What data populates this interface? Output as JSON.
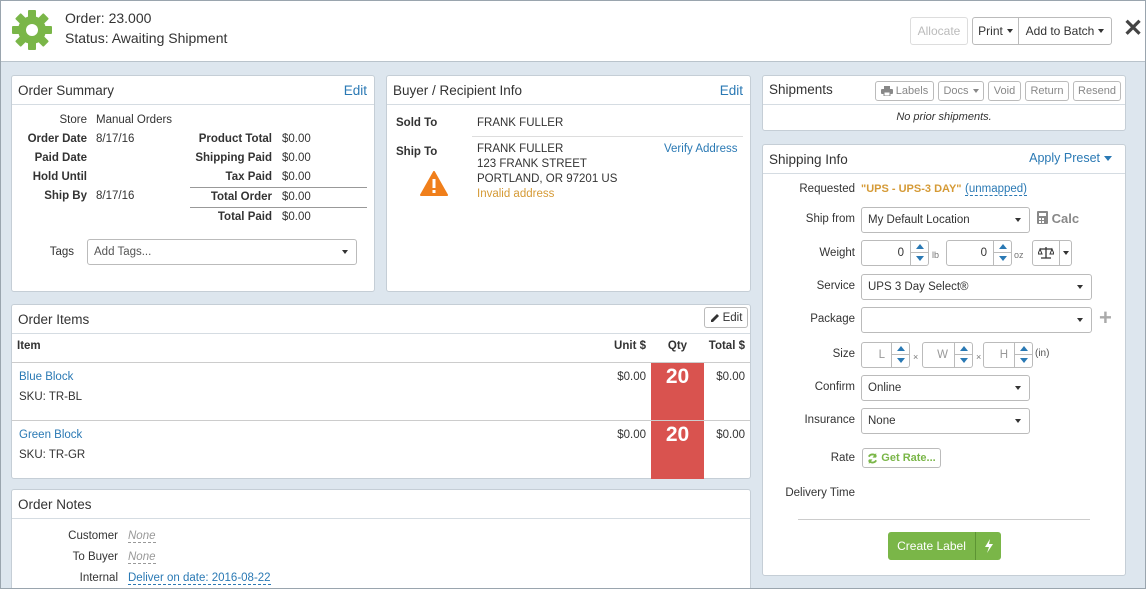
{
  "header": {
    "order_number": "Order: 23.000",
    "status": "Status: Awaiting Shipment",
    "allocate_label": "Allocate",
    "print_label": "Print",
    "add_to_batch_label": "Add to Batch",
    "close_glyph": "✕"
  },
  "order_summary": {
    "title": "Order Summary",
    "edit_label": "Edit",
    "store_label": "Store",
    "store_value": "Manual Orders",
    "order_date_label": "Order Date",
    "order_date_value": "8/17/16",
    "paid_date_label": "Paid Date",
    "hold_until_label": "Hold Until",
    "ship_by_label": "Ship By",
    "ship_by_value": "8/17/16",
    "product_total_label": "Product Total",
    "product_total_value": "$0.00",
    "shipping_paid_label": "Shipping Paid",
    "shipping_paid_value": "$0.00",
    "tax_paid_label": "Tax Paid",
    "tax_paid_value": "$0.00",
    "total_order_label": "Total Order",
    "total_order_value": "$0.00",
    "total_paid_label": "Total Paid",
    "total_paid_value": "$0.00",
    "tags_label": "Tags",
    "tags_placeholder": "Add Tags..."
  },
  "buyer": {
    "title": "Buyer / Recipient Info",
    "edit_label": "Edit",
    "sold_to_label": "Sold To",
    "sold_to_name": "FRANK FULLER",
    "ship_to_label": "Ship To",
    "ship_to_name": "FRANK FULLER",
    "ship_to_street": "123 FRANK STREET",
    "ship_to_city": "PORTLAND, OR 97201 US",
    "invalid_address": "Invalid address",
    "verify_address": "Verify Address",
    "warning_color": "#f07f1b"
  },
  "order_items": {
    "title": "Order Items",
    "edit_label": "Edit",
    "columns": {
      "item": "Item",
      "unit": "Unit $",
      "qty": "Qty",
      "total": "Total $"
    },
    "rows": [
      {
        "name": "Blue Block",
        "sku": "SKU: TR-BL",
        "unit": "$0.00",
        "qty": "20",
        "total": "$0.00"
      },
      {
        "name": "Green Block",
        "sku": "SKU: TR-GR",
        "unit": "$0.00",
        "qty": "20",
        "total": "$0.00"
      }
    ],
    "qty_color": "#d9534f"
  },
  "order_notes": {
    "title": "Order Notes",
    "customer_label": "Customer",
    "customer_value": "None",
    "to_buyer_label": "To Buyer",
    "to_buyer_value": "None",
    "internal_label": "Internal",
    "internal_value": "Deliver on date: 2016-08-22"
  },
  "shipments": {
    "title": "Shipments",
    "labels_btn": "Labels",
    "docs_btn": "Docs",
    "void_btn": "Void",
    "return_btn": "Return",
    "resend_btn": "Resend",
    "empty_text": "No prior shipments."
  },
  "shipping_info": {
    "title": "Shipping Info",
    "apply_preset": "Apply Preset",
    "requested_label": "Requested",
    "requested_value": "\"UPS - UPS-3 DAY\"",
    "unmapped": "(unmapped)",
    "ship_from_label": "Ship from",
    "ship_from_value": "My Default Location",
    "calc_label": "Calc",
    "weight_label": "Weight",
    "weight_lb": "0",
    "lb_unit": "lb",
    "weight_oz": "0",
    "oz_unit": "oz",
    "service_label": "Service",
    "service_value": "UPS 3 Day Select®",
    "package_label": "Package",
    "package_value": "",
    "size_label": "Size",
    "size_l": "L",
    "size_w": "W",
    "size_h": "H",
    "times": "×",
    "size_unit": "(in)",
    "confirm_label": "Confirm",
    "confirm_value": "Online",
    "insurance_label": "Insurance",
    "insurance_value": "None",
    "rate_label": "Rate",
    "get_rates": "Get Rate...",
    "delivery_time_label": "Delivery Time",
    "create_label": "Create Label",
    "accent_green": "#7ab648",
    "accent_orange": "#d59a36"
  }
}
